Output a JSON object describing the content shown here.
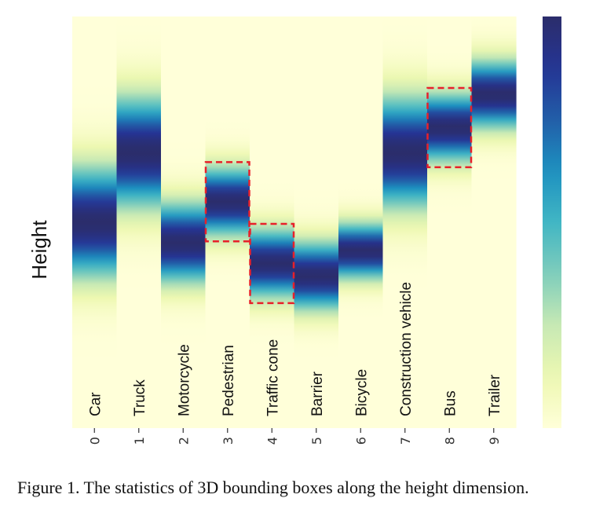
{
  "chart_data": {
    "type": "heatmap",
    "ylabel": "Height",
    "categories": [
      "Car",
      "Truck",
      "Motorcycle",
      "Pedestrian",
      "Traffic cone",
      "Barrier",
      "Bicycle",
      "Construction vehicle",
      "Bus",
      "Trailer"
    ],
    "xticks": [
      "0",
      "1",
      "2",
      "3",
      "4",
      "5",
      "6",
      "7",
      "8",
      "9"
    ],
    "value_axis": "height, normalized 0 (bottom) to 1 (top)",
    "columns": [
      {
        "center": 0.5,
        "spread": 0.09
      },
      {
        "center": 0.67,
        "spread": 0.09
      },
      {
        "center": 0.45,
        "spread": 0.065
      },
      {
        "center": 0.55,
        "spread": 0.055
      },
      {
        "center": 0.4,
        "spread": 0.055
      },
      {
        "center": 0.37,
        "spread": 0.055
      },
      {
        "center": 0.43,
        "spread": 0.045
      },
      {
        "center": 0.67,
        "spread": 0.09
      },
      {
        "center": 0.73,
        "spread": 0.055
      },
      {
        "center": 0.81,
        "spread": 0.055
      }
    ],
    "highlighted_columns": [
      3,
      4,
      8
    ],
    "highlight_color": "#e8202a",
    "colormap": [
      "#ffffd9",
      "#edf8b1",
      "#c7e9b4",
      "#7fcdbb",
      "#41b6c4",
      "#1d91c0",
      "#225ea8",
      "#253494",
      "#2b2d6b"
    ],
    "colorbar": true
  },
  "caption": "Figure 1.  The statistics of 3D bounding boxes along the height dimension."
}
